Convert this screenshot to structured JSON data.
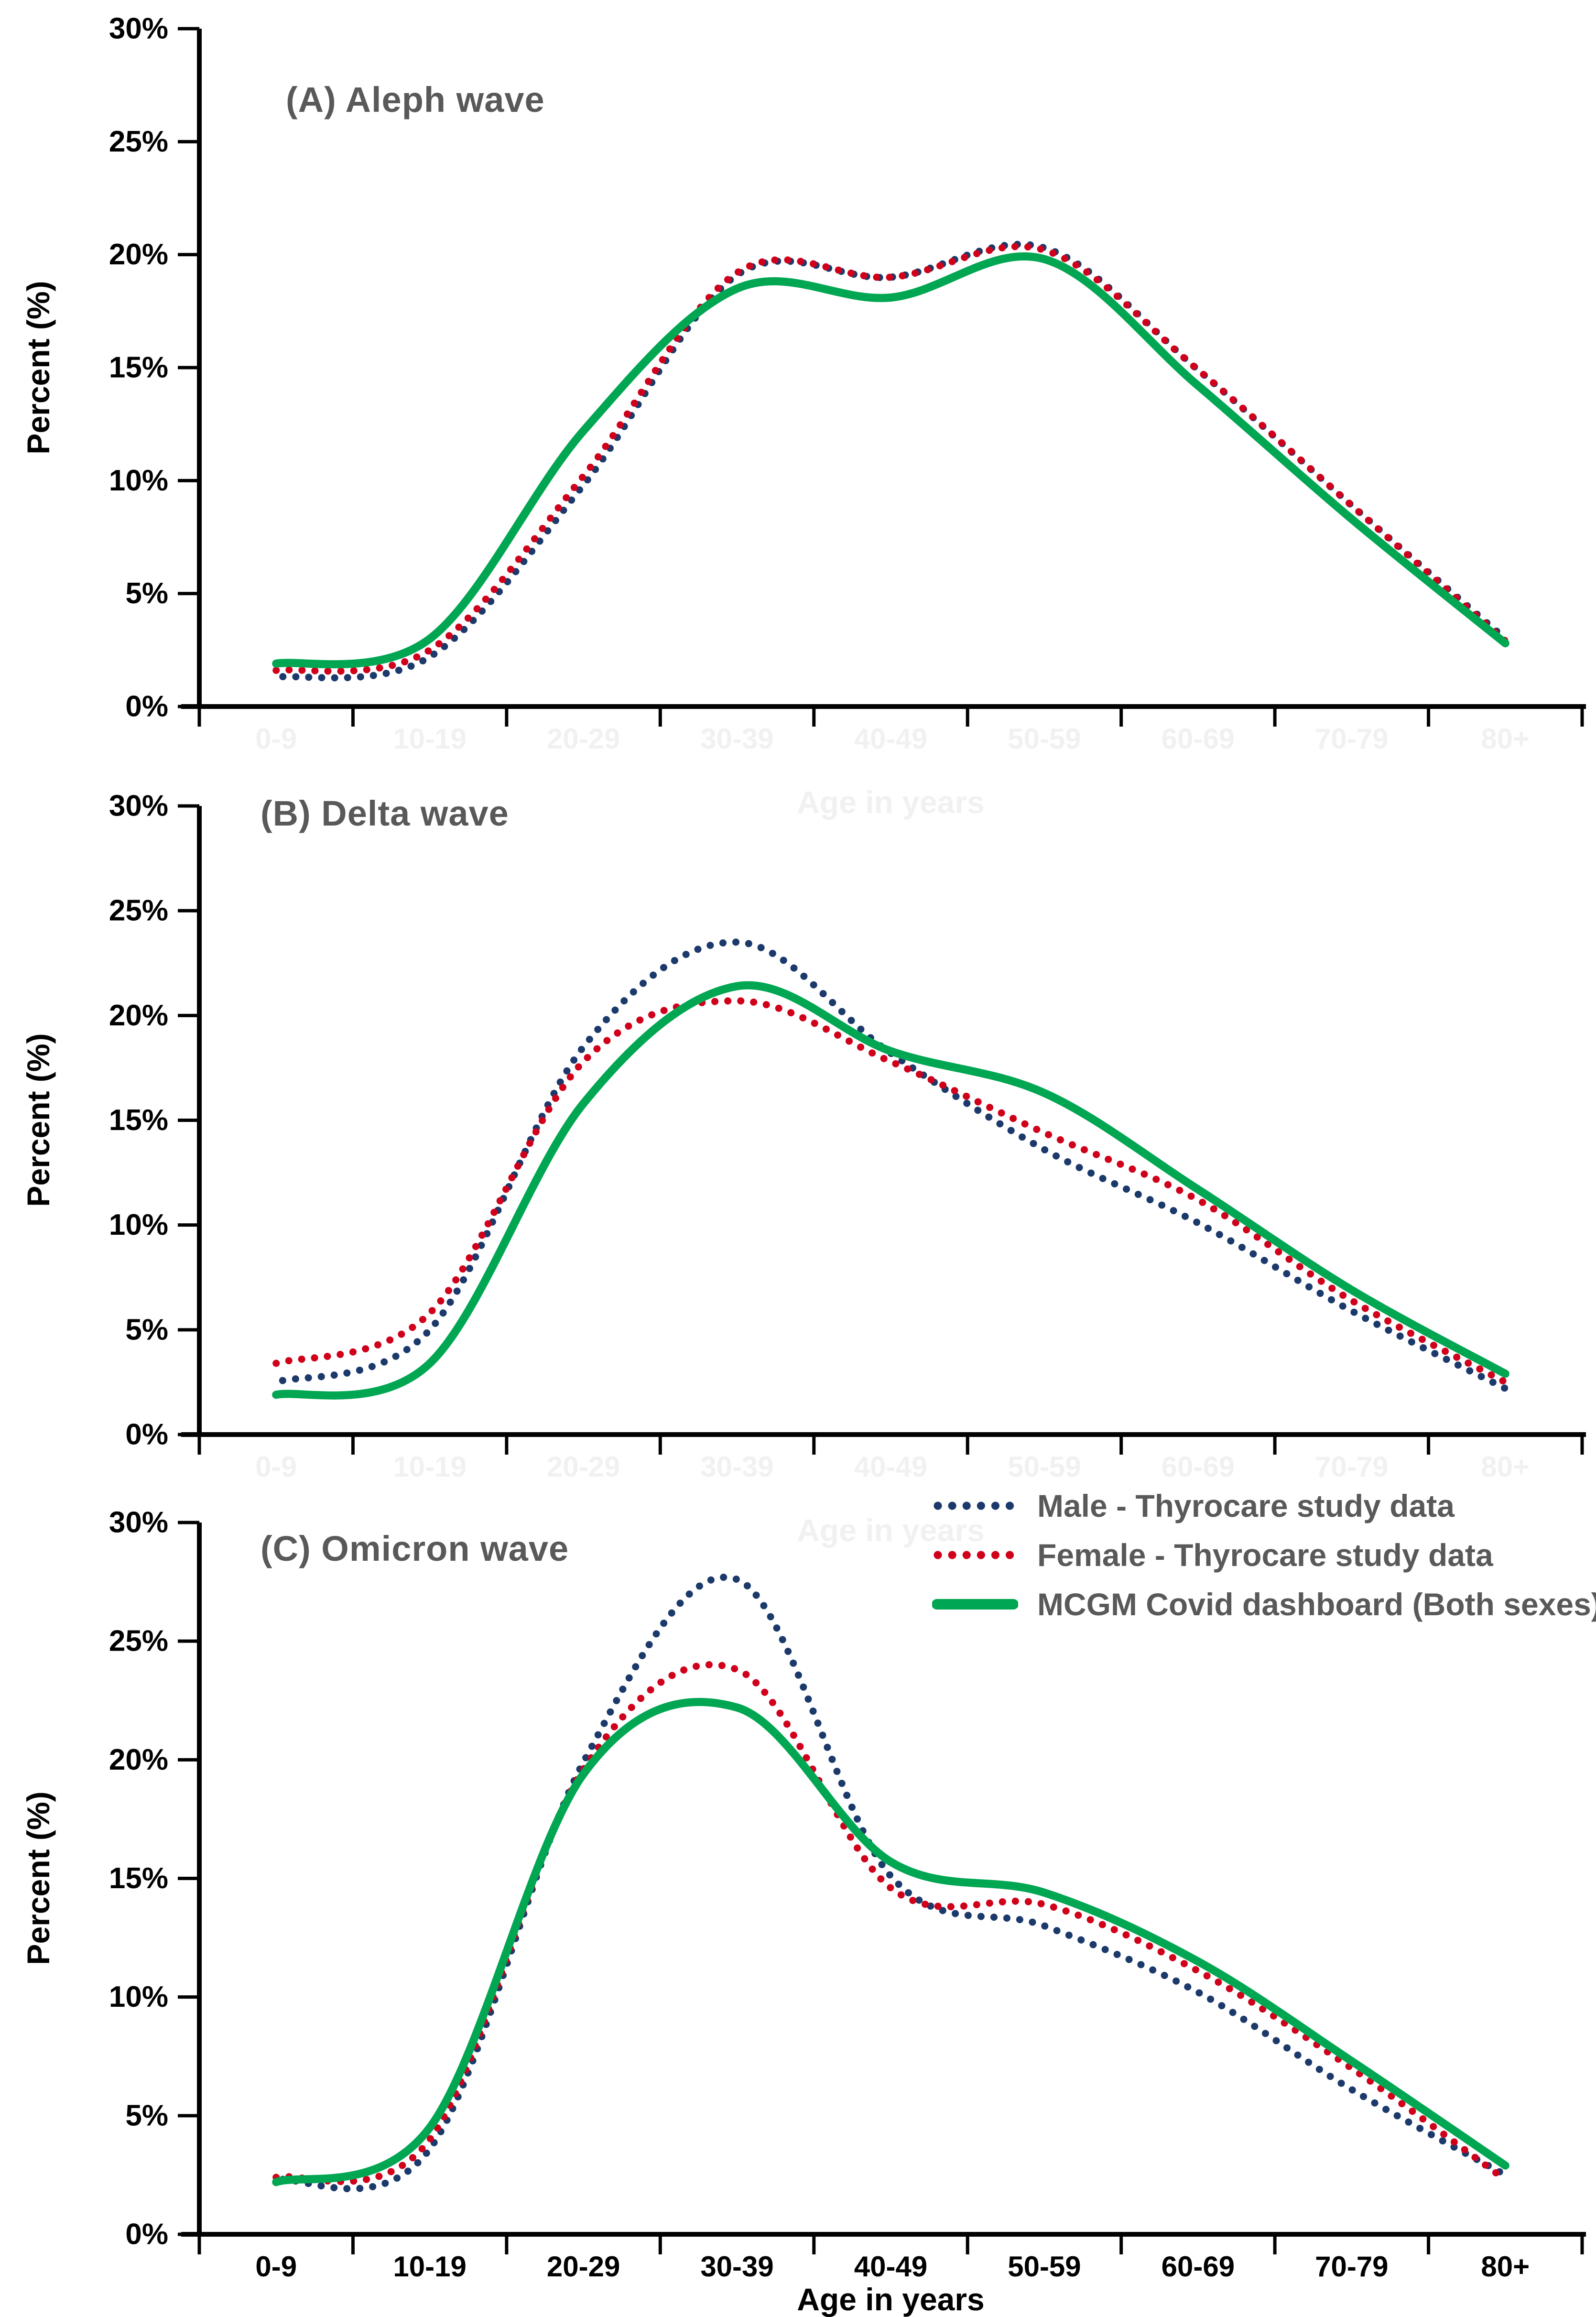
{
  "figure": {
    "ylabel": "Percent (%)",
    "xlabel": "Age in years",
    "yticks": [
      "30%",
      "25%",
      "20%",
      "15%",
      "10%",
      "5%",
      "0%"
    ],
    "categories": [
      "0-9",
      "10-19",
      "20-29",
      "30-39",
      "40-49",
      "50-59",
      "60-69",
      "70-79",
      "80+"
    ],
    "colors": {
      "male": "#1b3a6b",
      "female": "#d0001b",
      "mcgm": "#00a651",
      "panel_title": "#595959",
      "legend_text": "#595959",
      "axis": "#000000",
      "ghost_label": "#f1f1f1"
    }
  },
  "legend": {
    "items": [
      {
        "key": "male",
        "label": "Male - Thyrocare study data"
      },
      {
        "key": "female",
        "label": "Female - Thyrocare study data"
      },
      {
        "key": "mcgm",
        "label": "MCGM Covid dashboard (Both sexes)"
      }
    ]
  },
  "chart_data": [
    {
      "type": "line",
      "title": "(A) Aleph wave",
      "xlabel": "Age in years",
      "ylabel": "Percent (%)",
      "ylim": [
        0,
        30
      ],
      "ytick_step": 5,
      "grid": false,
      "legend_position": "top-right-of-panel-C",
      "categories": [
        "0-9",
        "10-19",
        "20-29",
        "30-39",
        "40-49",
        "50-59",
        "60-69",
        "70-79",
        "80+"
      ],
      "series": [
        {
          "key": "male",
          "name": "Male - Thyrocare study data",
          "style": "dotted",
          "values": [
            1.3,
            2.2,
            9.8,
            19.1,
            19.0,
            20.3,
            14.9,
            8.9,
            3.0
          ]
        },
        {
          "key": "female",
          "name": "Female - Thyrocare study data",
          "style": "dotted",
          "values": [
            1.6,
            2.5,
            10.2,
            19.2,
            19.0,
            20.2,
            14.9,
            8.9,
            2.9
          ]
        },
        {
          "key": "mcgm",
          "name": "MCGM Covid dashboard (Both sexes)",
          "style": "solid",
          "values": [
            1.9,
            3.0,
            12.2,
            18.5,
            18.1,
            19.8,
            14.2,
            8.3,
            2.8
          ]
        }
      ]
    },
    {
      "type": "line",
      "title": "(B) Delta wave",
      "xlabel": "Age in years",
      "ylabel": "Percent (%)",
      "ylim": [
        0,
        30
      ],
      "ytick_step": 5,
      "grid": false,
      "categories": [
        "0-9",
        "10-19",
        "20-29",
        "30-39",
        "40-49",
        "50-59",
        "60-69",
        "70-79",
        "80+"
      ],
      "series": [
        {
          "key": "male",
          "name": "Male - Thyrocare study data",
          "style": "dotted",
          "values": [
            2.5,
            5.0,
            18.5,
            23.5,
            18.2,
            13.6,
            10.1,
            5.9,
            2.2
          ]
        },
        {
          "key": "female",
          "name": "Female - Thyrocare study data",
          "style": "dotted",
          "values": [
            3.4,
            5.8,
            17.8,
            20.7,
            17.8,
            14.4,
            11.2,
            6.4,
            2.5
          ]
        },
        {
          "key": "mcgm",
          "name": "MCGM Covid dashboard (Both sexes)",
          "style": "solid",
          "values": [
            1.9,
            3.4,
            15.8,
            21.4,
            18.3,
            16.3,
            11.7,
            6.9,
            2.9
          ]
        }
      ]
    },
    {
      "type": "line",
      "title": "(C) Omicron wave",
      "xlabel": "Age in years",
      "ylabel": "Percent (%)",
      "ylim": [
        0,
        30
      ],
      "ytick_step": 5,
      "grid": false,
      "categories": [
        "0-9",
        "10-19",
        "20-29",
        "30-39",
        "40-49",
        "50-59",
        "60-69",
        "70-79",
        "80+"
      ],
      "series": [
        {
          "key": "male",
          "name": "Male - Thyrocare study data",
          "style": "dotted",
          "values": [
            2.3,
            3.6,
            19.9,
            27.6,
            15.1,
            13.0,
            10.2,
            6.1,
            2.5
          ]
        },
        {
          "key": "female",
          "name": "Female - Thyrocare study data",
          "style": "dotted",
          "values": [
            2.4,
            4.0,
            19.6,
            23.8,
            14.6,
            13.9,
            11.1,
            7.0,
            2.3
          ]
        },
        {
          "key": "mcgm",
          "name": "MCGM Covid dashboard (Both sexes)",
          "style": "solid",
          "values": [
            2.2,
            4.5,
            19.4,
            22.2,
            15.7,
            14.4,
            11.5,
            7.3,
            2.9
          ]
        }
      ]
    }
  ]
}
